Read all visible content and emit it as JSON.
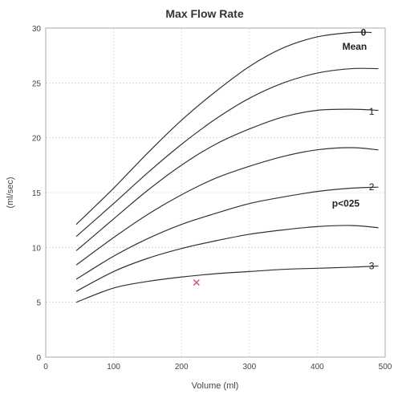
{
  "chart_data": {
    "type": "line",
    "title": "Max Flow Rate",
    "xlabel": "Volume (ml)",
    "ylabel": "(ml/sec)",
    "xlim": [
      0,
      500
    ],
    "ylim": [
      0,
      30
    ],
    "xticks": [
      0,
      100,
      200,
      300,
      400,
      500
    ],
    "yticks": [
      0,
      5,
      10,
      15,
      20,
      25,
      30
    ],
    "grid": true,
    "series": [
      {
        "name": "0",
        "x": [
          45,
          100,
          150,
          200,
          250,
          300,
          350,
          400,
          450,
          480
        ],
        "y": [
          12.1,
          15.4,
          18.6,
          21.6,
          24.2,
          26.5,
          28.2,
          29.2,
          29.6,
          29.6
        ]
      },
      {
        "name": "",
        "x": [
          45,
          100,
          150,
          200,
          250,
          300,
          350,
          400,
          450,
          490
        ],
        "y": [
          11.0,
          14.0,
          16.8,
          19.4,
          21.7,
          23.6,
          25.0,
          25.9,
          26.3,
          26.3
        ]
      },
      {
        "name": "1",
        "x": [
          45,
          100,
          150,
          200,
          250,
          300,
          350,
          400,
          450,
          490
        ],
        "y": [
          9.7,
          12.6,
          15.2,
          17.5,
          19.4,
          20.8,
          21.9,
          22.5,
          22.6,
          22.5
        ]
      },
      {
        "name": "",
        "x": [
          45,
          100,
          150,
          200,
          250,
          300,
          350,
          400,
          450,
          490
        ],
        "y": [
          8.4,
          10.9,
          13.0,
          14.8,
          16.3,
          17.4,
          18.3,
          18.9,
          19.1,
          18.9
        ]
      },
      {
        "name": "2",
        "x": [
          45,
          100,
          150,
          200,
          250,
          300,
          350,
          400,
          450,
          490
        ],
        "y": [
          7.1,
          9.2,
          10.8,
          12.1,
          13.1,
          14.0,
          14.6,
          15.1,
          15.4,
          15.5
        ]
      },
      {
        "name": "",
        "x": [
          45,
          100,
          150,
          200,
          250,
          300,
          350,
          400,
          450,
          490
        ],
        "y": [
          6.0,
          7.8,
          9.0,
          9.9,
          10.6,
          11.2,
          11.6,
          11.9,
          12.0,
          11.8
        ]
      },
      {
        "name": "3",
        "x": [
          45,
          100,
          150,
          200,
          250,
          300,
          350,
          400,
          450,
          490
        ],
        "y": [
          5.0,
          6.3,
          6.9,
          7.3,
          7.6,
          7.8,
          8.0,
          8.1,
          8.2,
          8.3
        ]
      }
    ],
    "annotations": [
      {
        "text": "Mean",
        "x": 455,
        "y": 28.3,
        "bold": true
      },
      {
        "text": "p<025",
        "x": 442,
        "y": 14.0,
        "bold": true
      }
    ],
    "curve_labels": [
      {
        "text": "0",
        "x": 468,
        "y": 29.6,
        "bold": true
      },
      {
        "text": "1",
        "x": 480,
        "y": 22.4,
        "bold": false
      },
      {
        "text": "2",
        "x": 480,
        "y": 15.5,
        "bold": false
      },
      {
        "text": "3",
        "x": 480,
        "y": 8.3,
        "bold": false
      }
    ],
    "marker": {
      "x": 222,
      "y": 6.8,
      "color": "#e05a7a",
      "symbol": "x"
    }
  }
}
